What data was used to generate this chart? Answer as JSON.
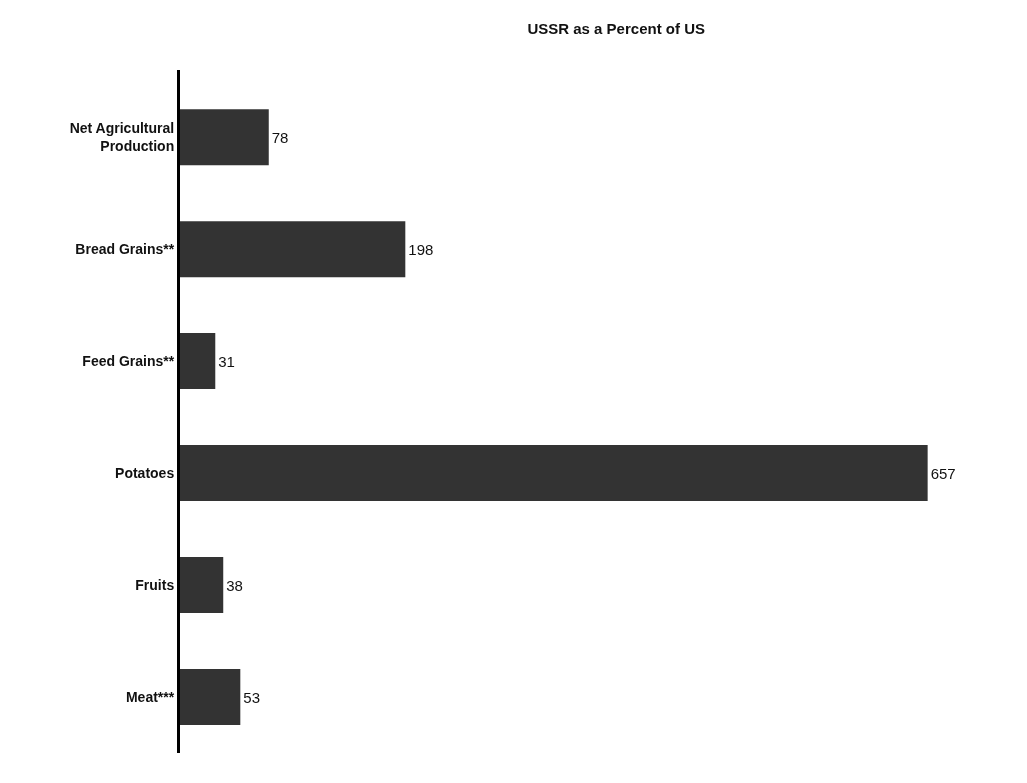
{
  "chart_data": {
    "type": "bar",
    "orientation": "horizontal",
    "title": "USSR as a Percent of US",
    "categories": [
      "Net Agricultural\nProduction",
      "Bread Grains**",
      "Feed Grains**",
      "Potatoes",
      "Fruits",
      "Meat***"
    ],
    "values": [
      78,
      198,
      31,
      657,
      38,
      53
    ],
    "color": "#333333",
    "data_labels": true,
    "tick_labels": "y"
  }
}
